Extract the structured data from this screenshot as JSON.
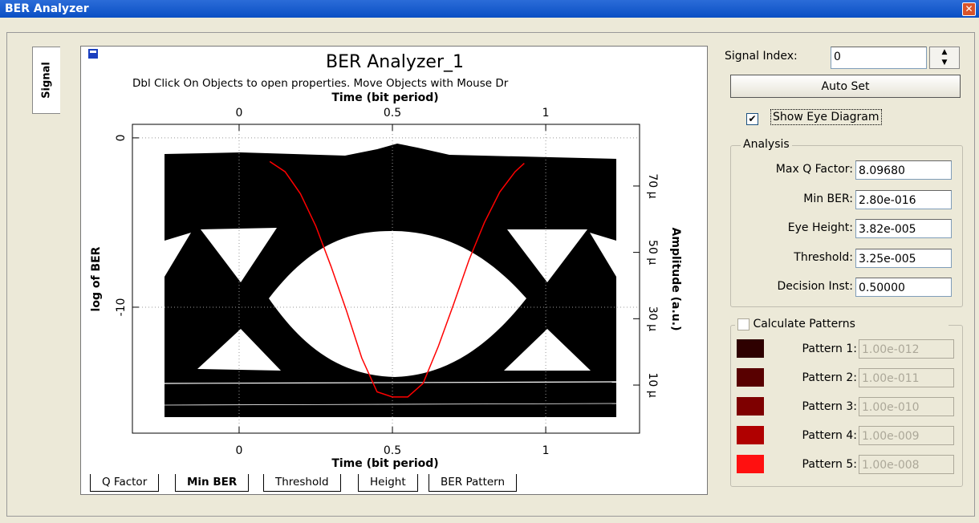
{
  "window": {
    "title": "BER Analyzer"
  },
  "side_tab": "Signal",
  "chart_data": {
    "type": "line",
    "title": "BER Analyzer_1",
    "subtitle": "Dbl Click On Objects to open properties.  Move Objects with Mouse Dr",
    "xlabel": "Time (bit period)",
    "x2label": "Time (bit period)",
    "ylabel": "log of BER",
    "y2label": "Amplitude (a.u.)",
    "xlim": [
      -0.348,
      1.306
    ],
    "xticks": [
      0,
      0.5,
      1
    ],
    "x2ticks": [
      0,
      0.5,
      1
    ],
    "ylim": [
      -17.44,
      0.8
    ],
    "yticks": [
      0,
      -10
    ],
    "y2lim": [
      -4.5e-06,
      8.86e-05
    ],
    "y2ticks": [
      {
        "value": 7e-05,
        "label": "70 µ"
      },
      {
        "value": 5e-05,
        "label": "50 µ"
      },
      {
        "value": 3e-05,
        "label": "30 µ"
      },
      {
        "value": 1e-05,
        "label": "10 µ"
      }
    ],
    "grid": true,
    "x": [
      0.1,
      0.15,
      0.2,
      0.25,
      0.3,
      0.35,
      0.4,
      0.45,
      0.5,
      0.55,
      0.6,
      0.65,
      0.7,
      0.75,
      0.8,
      0.85,
      0.9,
      0.93
    ],
    "series": [
      {
        "color": "#ff0000",
        "values": [
          -1.4,
          -2.0,
          -3.3,
          -5.2,
          -7.6,
          -10.2,
          -13.0,
          -15.0,
          -15.3,
          -15.3,
          -14.5,
          -12.3,
          -9.8,
          -7.2,
          -5.0,
          -3.2,
          -2.0,
          -1.5
        ]
      }
    ]
  },
  "tabs": [
    "Q Factor",
    "Min BER",
    "Threshold",
    "Height",
    "BER Pattern"
  ],
  "controls": {
    "signal_index_label": "Signal Index:",
    "signal_index": "0",
    "auto_set": "Auto Set",
    "show_eye": "Show Eye Diagram",
    "show_eye_checked": true
  },
  "analysis": {
    "title": "Analysis",
    "fields": [
      {
        "label": "Max Q Factor:",
        "value": "8.09680"
      },
      {
        "label": "Min BER:",
        "value": "2.80e-016"
      },
      {
        "label": "Eye Height:",
        "value": "3.82e-005"
      },
      {
        "label": "Threshold:",
        "value": "3.25e-005"
      },
      {
        "label": "Decision Inst:",
        "value": "0.50000"
      }
    ]
  },
  "patterns": {
    "title": "Calculate Patterns",
    "checked": false,
    "items": [
      {
        "label": "Pattern 1:",
        "value": "1.00e-012",
        "color": "#2e0000"
      },
      {
        "label": "Pattern 2:",
        "value": "1.00e-011",
        "color": "#580000"
      },
      {
        "label": "Pattern 3:",
        "value": "1.00e-010",
        "color": "#7e0000"
      },
      {
        "label": "Pattern 4:",
        "value": "1.00e-009",
        "color": "#b00000"
      },
      {
        "label": "Pattern 5:",
        "value": "1.00e-008",
        "color": "#ff1010"
      }
    ]
  }
}
